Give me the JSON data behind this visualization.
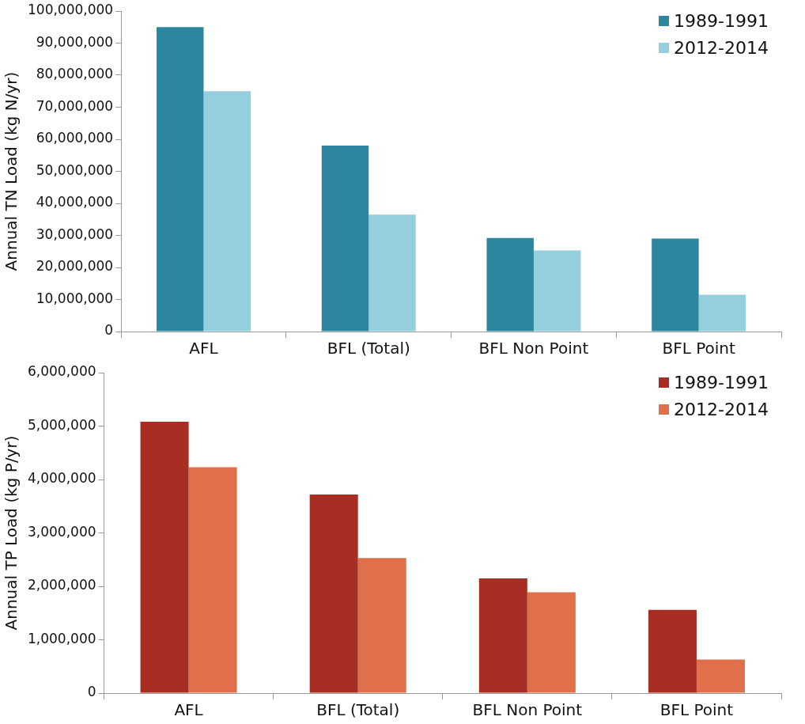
{
  "chart_data": [
    {
      "type": "bar",
      "ylabel": "Annual TN Load (kg N/yr)",
      "categories": [
        "AFL",
        "BFL (Total)",
        "BFL Non Point",
        "BFL Point"
      ],
      "series": [
        {
          "name": "1989-1991",
          "color": "#2e869e",
          "values": [
            95000000,
            58000000,
            29200000,
            29000000
          ]
        },
        {
          "name": "2012-2014",
          "color": "#95cedc",
          "values": [
            75000000,
            36500000,
            25300000,
            11500000
          ]
        }
      ],
      "ylim": [
        0,
        100000000
      ],
      "yticks": [
        {
          "value": 0,
          "label": "0"
        },
        {
          "value": 10000000,
          "label": "10,000,000"
        },
        {
          "value": 20000000,
          "label": "20,000,000"
        },
        {
          "value": 30000000,
          "label": "30,000,000"
        },
        {
          "value": 40000000,
          "label": "40,000,000"
        },
        {
          "value": 50000000,
          "label": "50,000,000"
        },
        {
          "value": 60000000,
          "label": "60,000,000"
        },
        {
          "value": 70000000,
          "label": "70,000,000"
        },
        {
          "value": 80000000,
          "label": "80,000,000"
        },
        {
          "value": 90000000,
          "label": "90,000,000"
        },
        {
          "value": 100000000,
          "label": "100,000,000"
        }
      ],
      "grid": false,
      "legend": "top right"
    },
    {
      "type": "bar",
      "ylabel": "Annual TP Load (kg P/yr)",
      "categories": [
        "AFL",
        "BFL (Total)",
        "BFL Non Point",
        "BFL Point"
      ],
      "series": [
        {
          "name": "1989-1991",
          "color": "#a82d22",
          "values": [
            5080000,
            3720000,
            2150000,
            1560000
          ]
        },
        {
          "name": "2012-2014",
          "color": "#e0704a",
          "values": [
            4230000,
            2530000,
            1890000,
            630000
          ]
        }
      ],
      "ylim": [
        0,
        6000000
      ],
      "yticks": [
        {
          "value": 0,
          "label": "0"
        },
        {
          "value": 1000000,
          "label": "1,000,000"
        },
        {
          "value": 2000000,
          "label": "2,000,000"
        },
        {
          "value": 3000000,
          "label": "3,000,000"
        },
        {
          "value": 4000000,
          "label": "4,000,000"
        },
        {
          "value": 5000000,
          "label": "5,000,000"
        },
        {
          "value": 6000000,
          "label": "6,000,000"
        }
      ],
      "grid": false,
      "legend": "top right"
    }
  ]
}
